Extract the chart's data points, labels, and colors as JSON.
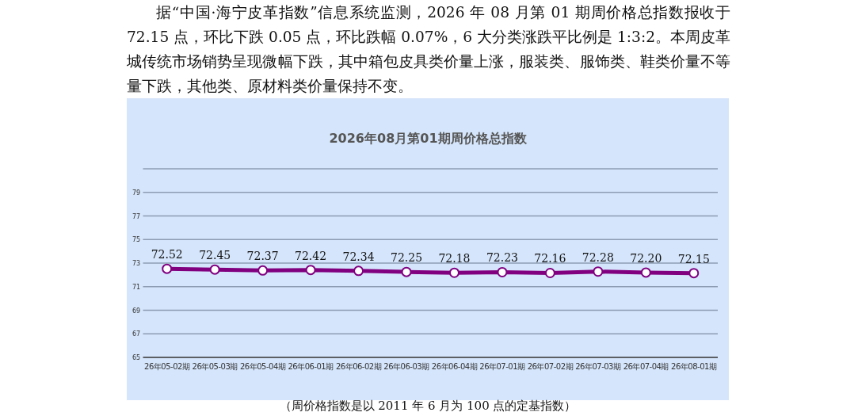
{
  "chart_data": {
    "type": "line",
    "title": "2026年08月第01期周价格总指数",
    "annotations": [
      "据“中国·海宁皮革指数”信息系统监测，2026 年 08 月第 01 期周价格总指数报收于 72.15 点，环比下跌 0.05 点，环比跌幅 0.07%，6 大分类涨跌平比例是 1:3:2。本周皮革城传统市场销势呈现微幅下跌，其中箱包皮具类价量上涨，服装类、服饰类、鞋类价量不等量下跌，其他类、原材料类价量保持不变。",
      "（周价格指数是以 2011 年 6 月为 100 点的定基指数）"
    ],
    "categories": [
      "26年05-02期",
      "26年05-03期",
      "26年05-04期",
      "26年06-01期",
      "26年06-02期",
      "26年06-03期",
      "26年06-04期",
      "26年07-01期",
      "26年07-02期",
      "26年07-03期",
      "26年07-04期",
      "26年08-01期"
    ],
    "values": [
      72.52,
      72.45,
      72.37,
      72.42,
      72.34,
      72.25,
      72.18,
      72.23,
      72.16,
      72.28,
      72.2,
      72.15
    ],
    "value_labels": [
      "72.52",
      "72.45",
      "72.37",
      "72.42",
      "72.34",
      "72.25",
      "72.18",
      "72.23",
      "72.16",
      "72.28",
      "72.20",
      "72.15"
    ],
    "color": "#800080",
    "marker": "circle",
    "grid": "y",
    "ylim": [
      65,
      81
    ],
    "yticks": [
      65,
      67,
      69,
      71,
      73,
      75,
      77,
      79,
      {
        "value": 81,
        "label": null
      }
    ]
  }
}
